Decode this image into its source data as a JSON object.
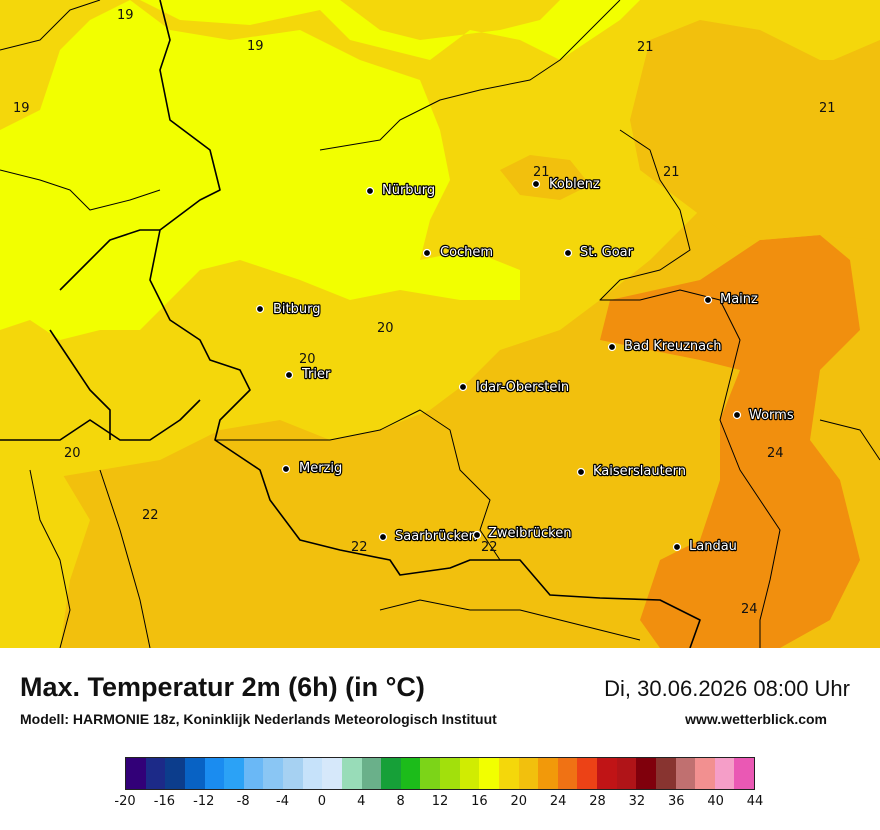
{
  "map": {
    "cities": [
      {
        "name": "Nürburg",
        "icon": "city-dot-icon"
      },
      {
        "name": "Koblenz",
        "icon": "city-dot-icon"
      },
      {
        "name": "Cochem",
        "icon": "city-dot-icon"
      },
      {
        "name": "St. Goar",
        "icon": "city-dot-icon"
      },
      {
        "name": "Mainz",
        "icon": "city-dot-icon"
      },
      {
        "name": "Bitburg",
        "icon": "city-dot-icon"
      },
      {
        "name": "Bad Kreuznach",
        "icon": "city-dot-icon"
      },
      {
        "name": "Trier",
        "icon": "city-dot-icon"
      },
      {
        "name": "Idar-Oberstein",
        "icon": "city-dot-icon"
      },
      {
        "name": "Worms",
        "icon": "city-dot-icon"
      },
      {
        "name": "Merzig",
        "icon": "city-dot-icon"
      },
      {
        "name": "Kaiserslautern",
        "icon": "city-dot-icon"
      },
      {
        "name": "Saarbrücken",
        "icon": "city-dot-icon"
      },
      {
        "name": "Zweibrücken",
        "icon": "city-dot-icon"
      },
      {
        "name": "Landau",
        "icon": "city-dot-icon"
      }
    ],
    "temperature_labels": [
      "19",
      "19",
      "19",
      "21",
      "21",
      "21",
      "21",
      "20",
      "20",
      "20",
      "22",
      "22",
      "22",
      "24",
      "24"
    ],
    "field_colors": {
      "t16_18": "#f2ff00",
      "t18_20": "#f4d70b",
      "t20_22": "#f2c00d",
      "t22_24": "#f18f0e"
    },
    "border_color": "#000000"
  },
  "footer": {
    "title": "Max. Temperatur 2m (6h) (in °C)",
    "subtitle": "Modell: HARMONIE 18z, Koninklijk Nederlands Meteorologisch Instituut",
    "datetime": "Di, 30.06.2026 08:00 Uhr",
    "website": "www.wetterblick.com"
  },
  "color_scale": {
    "unit": "°C",
    "min": -20,
    "max": 44,
    "step": 2,
    "tick_labels": [
      "-20",
      "-16",
      "-12",
      "-8",
      "-4",
      "0",
      "4",
      "8",
      "12",
      "16",
      "20",
      "24",
      "28",
      "32",
      "36",
      "40",
      "44"
    ],
    "colors": [
      "#320078",
      "#1c2a88",
      "#0c3d8c",
      "#0862c4",
      "#1a8cf0",
      "#2ba2f6",
      "#6ab8f6",
      "#8ac6f4",
      "#a6d1f2",
      "#c6e2fa",
      "#d6e8fa",
      "#98dcb8",
      "#6ab08a",
      "#16a038",
      "#1cbc1a",
      "#7cd418",
      "#a2e00c",
      "#d0ec02",
      "#f2ff00",
      "#f4d70b",
      "#f2c00d",
      "#f2990a",
      "#f07214",
      "#ec4216",
      "#c01416",
      "#b01418",
      "#80000c",
      "#883430",
      "#c07070",
      "#f29090",
      "#f59ec8",
      "#ea58b4"
    ]
  }
}
